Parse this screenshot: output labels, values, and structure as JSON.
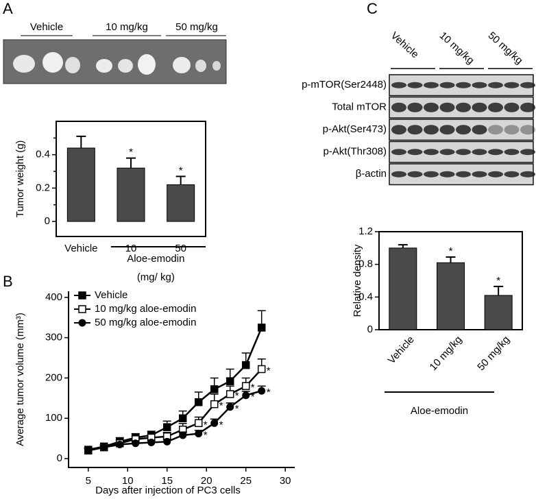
{
  "figure": {
    "panels": [
      "A",
      "B",
      "C"
    ],
    "tumor_groups": [
      "Vehicle",
      "10 mg/kg",
      "50 mg/kg"
    ],
    "blot": {
      "columns": [
        "Vehicle",
        "10 mg/kg",
        "50 mg/kg"
      ],
      "rows": [
        "p-mTOR(Ser2448)",
        "Total mTOR",
        "p-Akt(Ser473)",
        "p-Akt(Thr308)",
        "β-actin"
      ]
    }
  },
  "chart_data": [
    {
      "type": "bar",
      "ylabel": "Tumor weight (g)",
      "categories": [
        "Vehicle",
        "10",
        "50"
      ],
      "values": [
        0.44,
        0.32,
        0.22
      ],
      "errors": [
        0.07,
        0.06,
        0.05
      ],
      "significance": [
        null,
        "*",
        "*"
      ],
      "group_label": "Aloe-emodin",
      "group_unit": "(mg/ kg)",
      "color": "#4a4a4a",
      "ylim": [
        -0.09,
        0.6
      ],
      "yticks": [
        0,
        0.2,
        0.4
      ],
      "minor_yticks": [
        0.1,
        0.3,
        0.5
      ]
    },
    {
      "type": "line",
      "xlabel": "Days after injection of PC3 cells",
      "ylabel": "Average tumor volume (mm³)",
      "x": [
        5,
        7,
        9,
        11,
        13,
        15,
        17,
        19,
        21,
        23,
        25,
        27
      ],
      "series": [
        {
          "name": "Vehicle",
          "marker": "square-filled",
          "color": "#000000",
          "values": [
            22,
            30,
            42,
            52,
            58,
            78,
            100,
            140,
            172,
            192,
            232,
            325
          ],
          "errors": [
            5,
            5,
            10,
            10,
            10,
            15,
            18,
            25,
            28,
            30,
            30,
            42
          ]
        },
        {
          "name": "10 mg/kg aloe-emodin",
          "marker": "square-open",
          "color": "#000000",
          "values": [
            20,
            28,
            38,
            48,
            52,
            55,
            72,
            88,
            135,
            160,
            180,
            222
          ],
          "errors": [
            5,
            5,
            8,
            8,
            8,
            10,
            15,
            15,
            25,
            20,
            20,
            25
          ],
          "significance": [
            null,
            null,
            null,
            null,
            null,
            null,
            null,
            "*",
            "*",
            "*",
            "*",
            "*"
          ]
        },
        {
          "name": "50 mg/kg aloe-emodin",
          "marker": "circle-filled",
          "color": "#000000",
          "values": [
            20,
            28,
            35,
            38,
            40,
            42,
            58,
            62,
            88,
            128,
            157,
            168
          ],
          "errors": [
            5,
            5,
            5,
            6,
            6,
            6,
            8,
            8,
            10,
            10,
            10,
            12
          ],
          "significance": [
            null,
            null,
            null,
            null,
            null,
            null,
            null,
            "*",
            "*",
            "*",
            "*",
            "*"
          ]
        }
      ],
      "xlim": [
        2.5,
        31.2
      ],
      "xticks": [
        5,
        10,
        15,
        20,
        25,
        30
      ],
      "ylim": [
        -22,
        415
      ],
      "yticks": [
        0,
        100,
        200,
        300,
        400
      ]
    },
    {
      "type": "bar",
      "ylabel": "Relative density",
      "categories": [
        "Vehicle",
        "10 mg/kg",
        "50 mg/kg"
      ],
      "values": [
        1.0,
        0.82,
        0.42
      ],
      "errors": [
        0.04,
        0.07,
        0.11
      ],
      "significance": [
        null,
        "*",
        "*"
      ],
      "group_label": "Aloe-emodin",
      "color": "#4a4a4a",
      "ylim": [
        0,
        1.2
      ],
      "yticks": [
        0,
        {
          "value": 0.4,
          "label": "0.4"
        },
        {
          "value": 0.8,
          "label": "0.8"
        },
        {
          "value": 1.2,
          "label": "1.2"
        }
      ]
    }
  ]
}
